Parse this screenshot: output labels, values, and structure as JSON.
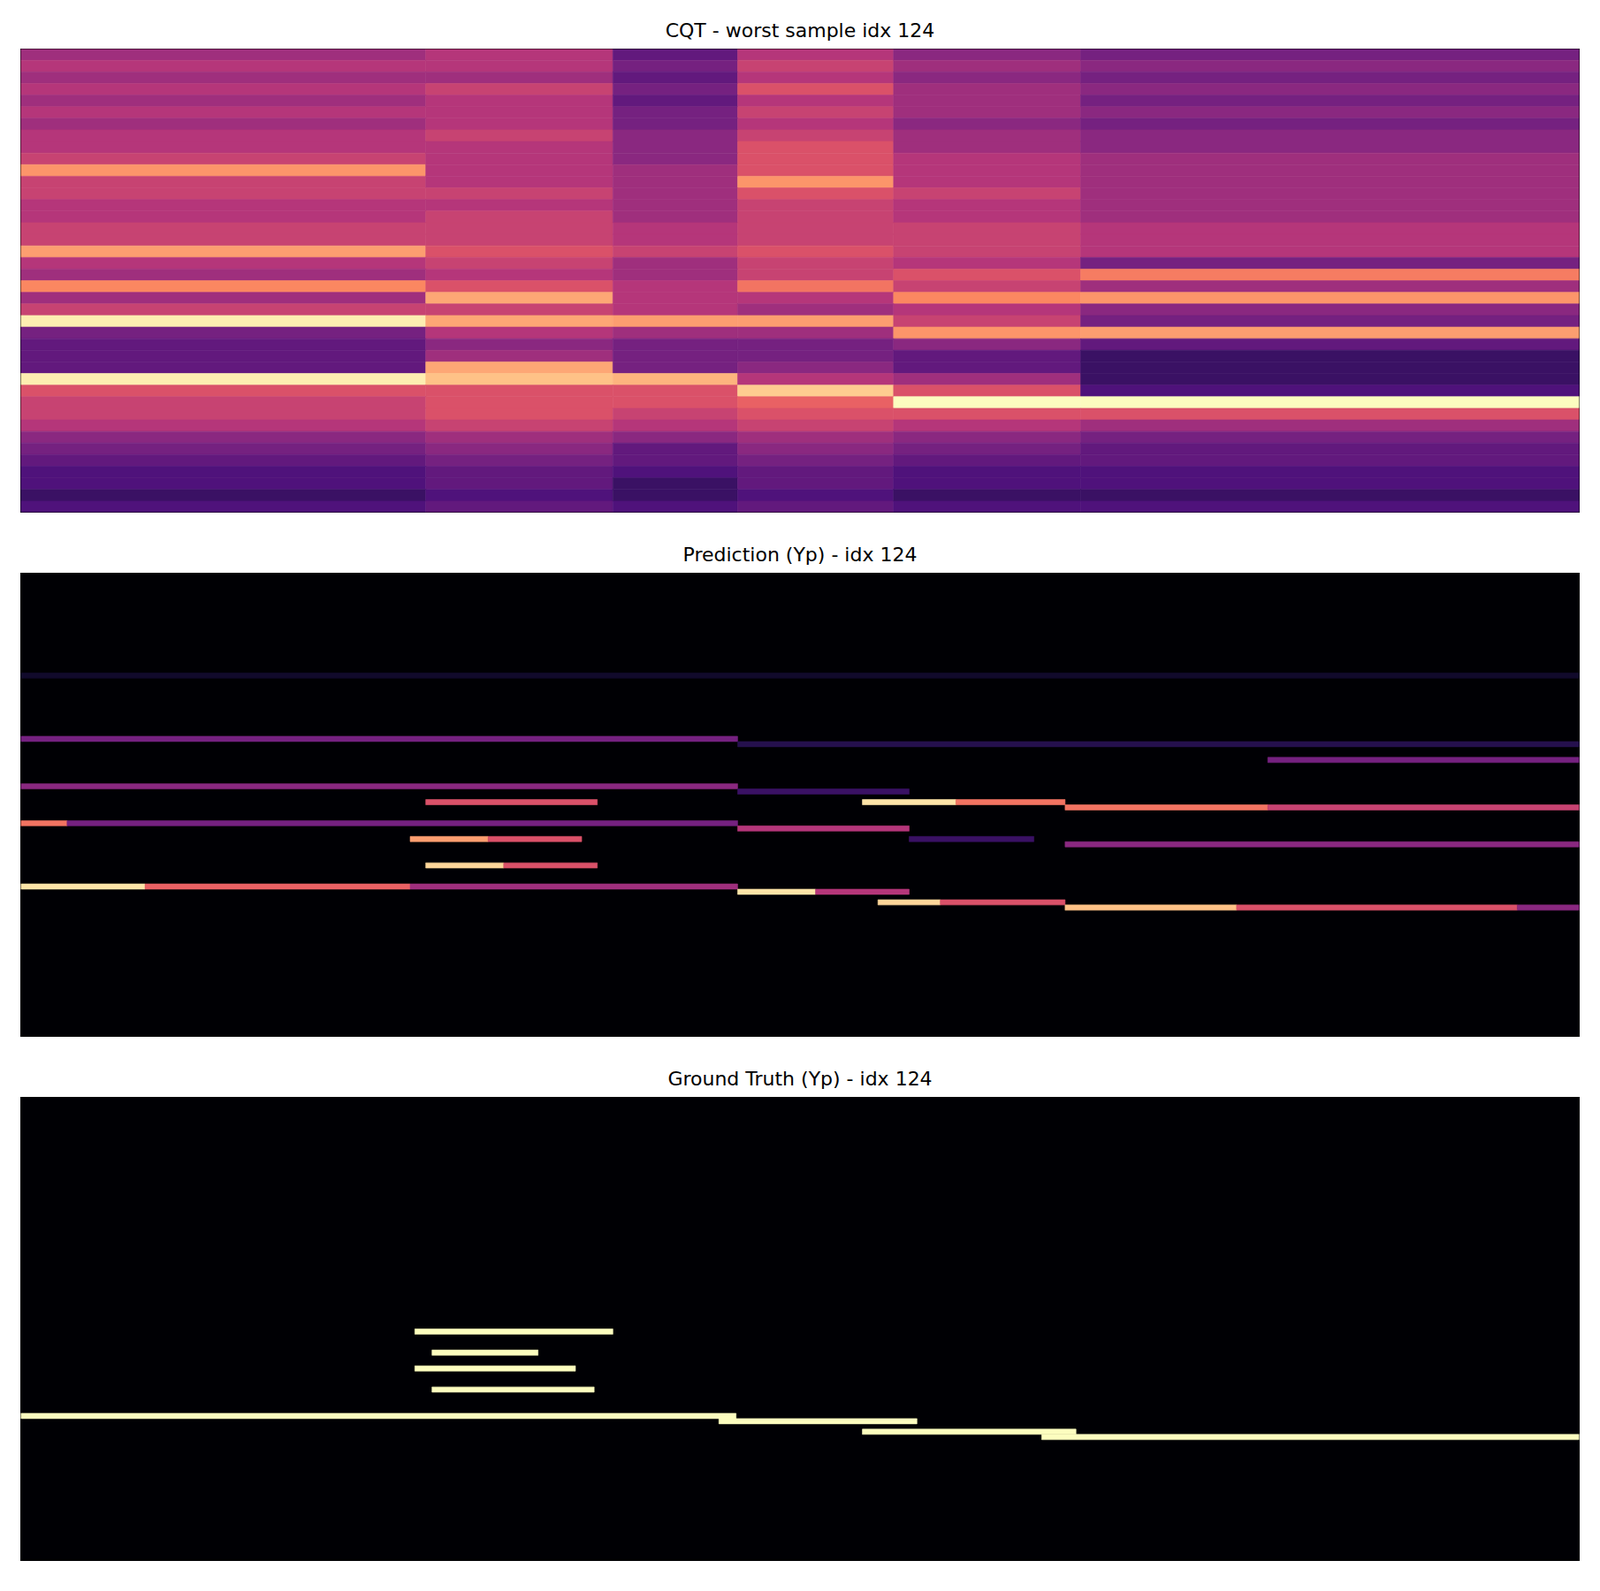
{
  "chart_data": [
    {
      "type": "heatmap",
      "title": "CQT - worst sample idx 124",
      "tick_labels": false,
      "xlim": [
        0,
        100
      ],
      "ylim": [
        0,
        40
      ],
      "color_range": [
        0,
        1
      ],
      "x": [
        0,
        26,
        38,
        46,
        56,
        68,
        100
      ],
      "cells": [
        [
          0.45,
          0.5,
          0.3,
          0.5,
          0.4,
          0.35
        ],
        [
          0.5,
          0.5,
          0.35,
          0.55,
          0.45,
          0.4
        ],
        [
          0.45,
          0.45,
          0.3,
          0.5,
          0.4,
          0.35
        ],
        [
          0.5,
          0.55,
          0.35,
          0.6,
          0.45,
          0.4
        ],
        [
          0.45,
          0.5,
          0.3,
          0.5,
          0.45,
          0.35
        ],
        [
          0.5,
          0.5,
          0.35,
          0.55,
          0.45,
          0.4
        ],
        [
          0.45,
          0.5,
          0.35,
          0.5,
          0.4,
          0.35
        ],
        [
          0.5,
          0.55,
          0.4,
          0.55,
          0.45,
          0.4
        ],
        [
          0.5,
          0.5,
          0.4,
          0.6,
          0.45,
          0.4
        ],
        [
          0.55,
          0.5,
          0.4,
          0.6,
          0.5,
          0.45
        ],
        [
          0.78,
          0.5,
          0.45,
          0.6,
          0.5,
          0.45
        ],
        [
          0.55,
          0.5,
          0.45,
          0.78,
          0.5,
          0.45
        ],
        [
          0.55,
          0.55,
          0.45,
          0.6,
          0.55,
          0.45
        ],
        [
          0.5,
          0.5,
          0.45,
          0.55,
          0.5,
          0.45
        ],
        [
          0.5,
          0.55,
          0.45,
          0.55,
          0.5,
          0.45
        ],
        [
          0.55,
          0.55,
          0.5,
          0.55,
          0.55,
          0.5
        ],
        [
          0.55,
          0.55,
          0.5,
          0.55,
          0.55,
          0.5
        ],
        [
          0.8,
          0.6,
          0.55,
          0.6,
          0.55,
          0.5
        ],
        [
          0.5,
          0.55,
          0.45,
          0.55,
          0.5,
          0.35
        ],
        [
          0.45,
          0.5,
          0.45,
          0.55,
          0.6,
          0.72
        ],
        [
          0.75,
          0.6,
          0.5,
          0.7,
          0.55,
          0.45
        ],
        [
          0.45,
          0.82,
          0.5,
          0.5,
          0.75,
          0.78
        ],
        [
          0.55,
          0.55,
          0.5,
          0.45,
          0.5,
          0.4
        ],
        [
          0.97,
          0.82,
          0.8,
          0.8,
          0.55,
          0.35
        ],
        [
          0.35,
          0.5,
          0.45,
          0.45,
          0.78,
          0.8
        ],
        [
          0.3,
          0.4,
          0.35,
          0.35,
          0.4,
          0.3
        ],
        [
          0.3,
          0.45,
          0.35,
          0.35,
          0.3,
          0.2
        ],
        [
          0.3,
          0.82,
          0.35,
          0.4,
          0.3,
          0.2
        ],
        [
          0.97,
          0.88,
          0.85,
          0.5,
          0.45,
          0.2
        ],
        [
          0.6,
          0.6,
          0.6,
          0.9,
          0.6,
          0.25
        ],
        [
          0.55,
          0.6,
          0.6,
          0.65,
          1.0,
          1.0
        ],
        [
          0.55,
          0.6,
          0.55,
          0.6,
          0.6,
          0.6
        ],
        [
          0.5,
          0.55,
          0.5,
          0.55,
          0.5,
          0.45
        ],
        [
          0.4,
          0.45,
          0.4,
          0.45,
          0.4,
          0.35
        ],
        [
          0.35,
          0.4,
          0.3,
          0.4,
          0.35,
          0.3
        ],
        [
          0.3,
          0.35,
          0.3,
          0.35,
          0.3,
          0.3
        ],
        [
          0.25,
          0.3,
          0.25,
          0.3,
          0.25,
          0.25
        ],
        [
          0.25,
          0.3,
          0.2,
          0.3,
          0.25,
          0.25
        ],
        [
          0.2,
          0.25,
          0.2,
          0.25,
          0.2,
          0.2
        ],
        [
          0.25,
          0.3,
          0.25,
          0.3,
          0.25,
          0.25
        ]
      ]
    },
    {
      "type": "heatmap",
      "title": "Prediction (Yp) - idx 124",
      "tick_labels": false,
      "xlim": [
        0,
        100
      ],
      "ylim": [
        0,
        88
      ],
      "color_range": [
        0,
        1
      ],
      "notes": [
        {
          "row": 19,
          "start": 0,
          "end": 100,
          "value": 0.08
        },
        {
          "row": 31,
          "start": 0,
          "end": 46,
          "value": 0.35
        },
        {
          "row": 32,
          "start": 46,
          "end": 100,
          "value": 0.15
        },
        {
          "row": 35,
          "start": 80,
          "end": 100,
          "value": 0.35
        },
        {
          "row": 40,
          "start": 0,
          "end": 46,
          "value": 0.4
        },
        {
          "row": 41,
          "start": 46,
          "end": 57,
          "value": 0.2
        },
        {
          "row": 43,
          "start": 26,
          "end": 37,
          "value": 0.6
        },
        {
          "row": 43,
          "start": 54,
          "end": 60,
          "value": 0.95
        },
        {
          "row": 43,
          "start": 60,
          "end": 67,
          "value": 0.7
        },
        {
          "row": 44,
          "start": 67,
          "end": 80,
          "value": 0.7
        },
        {
          "row": 44,
          "start": 80,
          "end": 100,
          "value": 0.55
        },
        {
          "row": 47,
          "start": 0,
          "end": 3,
          "value": 0.7
        },
        {
          "row": 47,
          "start": 3,
          "end": 46,
          "value": 0.35
        },
        {
          "row": 48,
          "start": 46,
          "end": 57,
          "value": 0.5
        },
        {
          "row": 50,
          "start": 25,
          "end": 30,
          "value": 0.8
        },
        {
          "row": 50,
          "start": 30,
          "end": 36,
          "value": 0.6
        },
        {
          "row": 50,
          "start": 57,
          "end": 65,
          "value": 0.2
        },
        {
          "row": 51,
          "start": 67,
          "end": 100,
          "value": 0.4
        },
        {
          "row": 55,
          "start": 26,
          "end": 31,
          "value": 0.92
        },
        {
          "row": 55,
          "start": 31,
          "end": 37,
          "value": 0.6
        },
        {
          "row": 59,
          "start": 0,
          "end": 8,
          "value": 0.95
        },
        {
          "row": 59,
          "start": 8,
          "end": 25,
          "value": 0.65
        },
        {
          "row": 59,
          "start": 25,
          "end": 46,
          "value": 0.45
        },
        {
          "row": 60,
          "start": 46,
          "end": 51,
          "value": 0.95
        },
        {
          "row": 60,
          "start": 51,
          "end": 57,
          "value": 0.5
        },
        {
          "row": 62,
          "start": 55,
          "end": 59,
          "value": 0.92
        },
        {
          "row": 62,
          "start": 59,
          "end": 67,
          "value": 0.6
        },
        {
          "row": 63,
          "start": 67,
          "end": 78,
          "value": 0.88
        },
        {
          "row": 63,
          "start": 78,
          "end": 96,
          "value": 0.6
        },
        {
          "row": 63,
          "start": 96,
          "end": 100,
          "value": 0.4
        }
      ]
    },
    {
      "type": "heatmap",
      "title": "Ground Truth (Yp) - idx 124",
      "tick_labels": false,
      "xlim": [
        0,
        100
      ],
      "ylim": [
        0,
        88
      ],
      "color_range": [
        0,
        1
      ],
      "notes": [
        {
          "row": 44,
          "start": 25.3,
          "end": 38,
          "value": 1
        },
        {
          "row": 48,
          "start": 26.4,
          "end": 33.2,
          "value": 1
        },
        {
          "row": 51,
          "start": 25.3,
          "end": 35.6,
          "value": 1
        },
        {
          "row": 55,
          "start": 26.4,
          "end": 36.8,
          "value": 1
        },
        {
          "row": 60,
          "start": 0,
          "end": 45.9,
          "value": 1
        },
        {
          "row": 61,
          "start": 44.8,
          "end": 57.5,
          "value": 1
        },
        {
          "row": 63,
          "start": 54,
          "end": 67.7,
          "value": 1
        },
        {
          "row": 64,
          "start": 65.5,
          "end": 100,
          "value": 1
        }
      ]
    }
  ]
}
